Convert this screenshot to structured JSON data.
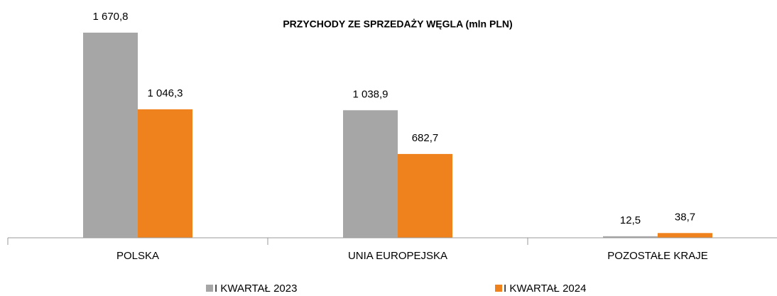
{
  "chart_data": {
    "type": "bar",
    "title": "PRZYCHODY ZE SPRZEDAŻY WĘGLA (mln PLN)",
    "categories": [
      "POLSKA",
      "UNIA EUROPEJSKA",
      "POZOSTAŁE KRAJE"
    ],
    "series": [
      {
        "name": "I KWARTAŁ 2023",
        "color": "#a6a6a6",
        "values": [
          1670.8,
          1038.9,
          12.5
        ],
        "value_labels": [
          "1 670,8",
          "1 038,9",
          "12,5"
        ]
      },
      {
        "name": "I KWARTAŁ 2024",
        "color": "#f0821e",
        "values": [
          1046.3,
          682.7,
          38.7
        ],
        "value_labels": [
          "1 046,3",
          "682,7",
          "38,7"
        ]
      }
    ],
    "legend": "bottom"
  }
}
